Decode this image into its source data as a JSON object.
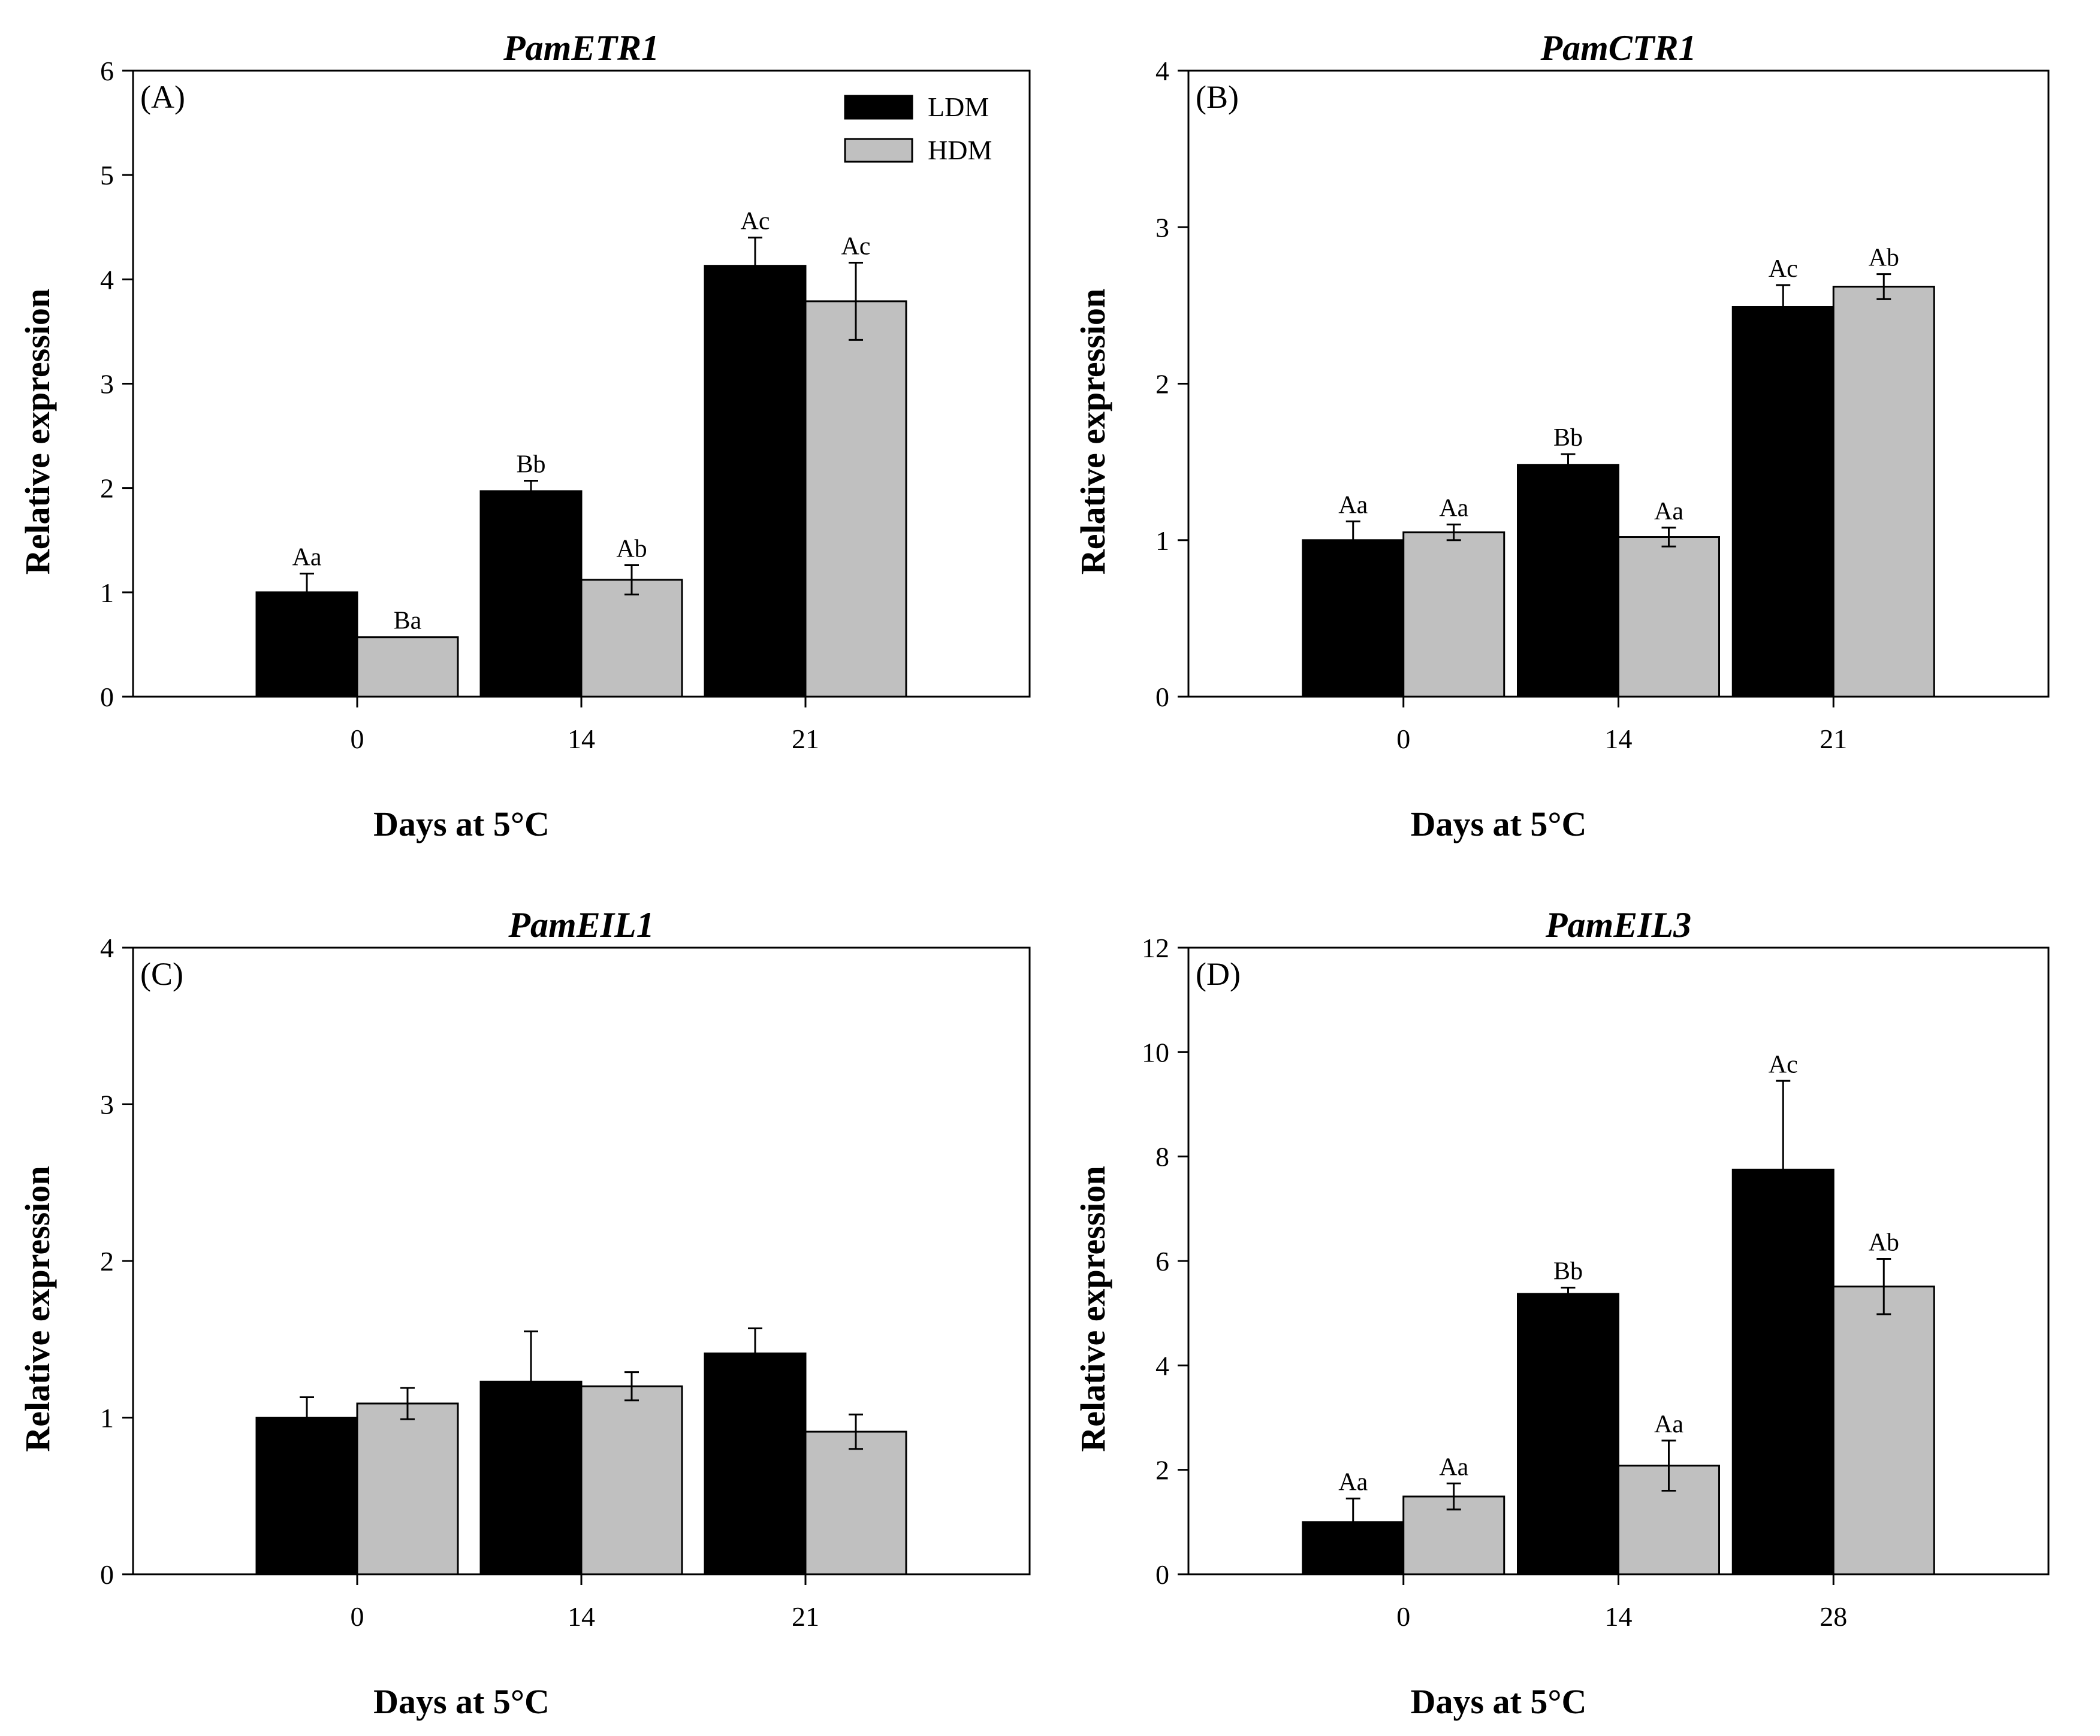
{
  "legend": {
    "items": [
      {
        "label": "LDM",
        "color": "#000000"
      },
      {
        "label": "HDM",
        "color": "#c0c0c0"
      }
    ]
  },
  "chart_data": [
    {
      "type": "bar",
      "panel_label": "(A)",
      "title": "PamETR1",
      "xlabel": "Days at 5°C",
      "ylabel": "Relative expression",
      "ylim": [
        0,
        6
      ],
      "yticks": [
        0,
        1,
        2,
        3,
        4,
        5,
        6
      ],
      "categories": [
        "0",
        "14",
        "21"
      ],
      "series": [
        {
          "name": "LDM",
          "values": [
            1.0,
            1.97,
            4.13
          ],
          "errors": [
            0.18,
            0.1,
            0.27
          ],
          "labels": [
            "Aa",
            "Bb",
            "Ac"
          ]
        },
        {
          "name": "HDM",
          "values": [
            0.57,
            1.12,
            3.79
          ],
          "errors": [
            0.0,
            0.14,
            0.37
          ],
          "labels": [
            "Ba",
            "Ab",
            "Ac"
          ]
        }
      ]
    },
    {
      "type": "bar",
      "panel_label": "(B)",
      "title": "PamCTR1",
      "xlabel": "Days at 5°C",
      "ylabel": "Relative expression",
      "ylim": [
        0,
        4
      ],
      "yticks": [
        0,
        1,
        2,
        3,
        4
      ],
      "categories": [
        "0",
        "14",
        "21"
      ],
      "series": [
        {
          "name": "LDM",
          "values": [
            1.0,
            1.48,
            2.49
          ],
          "errors": [
            0.12,
            0.07,
            0.14
          ],
          "labels": [
            "Aa",
            "Bb",
            "Ac"
          ]
        },
        {
          "name": "HDM",
          "values": [
            1.05,
            1.02,
            2.62
          ],
          "errors": [
            0.05,
            0.06,
            0.08
          ],
          "labels": [
            "Aa",
            "Aa",
            "Ab"
          ]
        }
      ]
    },
    {
      "type": "bar",
      "panel_label": "(C)",
      "title": "PamEIL1",
      "xlabel": "Days at 5°C",
      "ylabel": "Relative expression",
      "ylim": [
        0,
        4
      ],
      "yticks": [
        0,
        1,
        2,
        3,
        4
      ],
      "categories": [
        "0",
        "14",
        "21"
      ],
      "series": [
        {
          "name": "LDM",
          "values": [
            1.0,
            1.23,
            1.41
          ],
          "errors": [
            0.13,
            0.32,
            0.16
          ],
          "labels": [
            "",
            "",
            ""
          ]
        },
        {
          "name": "HDM",
          "values": [
            1.09,
            1.2,
            0.91
          ],
          "errors": [
            0.1,
            0.09,
            0.11
          ],
          "labels": [
            "",
            "",
            ""
          ]
        }
      ]
    },
    {
      "type": "bar",
      "panel_label": "(D)",
      "title": "PamEIL3",
      "xlabel": "Days at 5°C",
      "ylabel": "Relative expression",
      "ylim": [
        0,
        12
      ],
      "yticks": [
        0,
        2,
        4,
        6,
        8,
        10,
        12
      ],
      "categories": [
        "0",
        "14",
        "28"
      ],
      "series": [
        {
          "name": "LDM",
          "values": [
            1.0,
            5.37,
            7.75
          ],
          "errors": [
            0.45,
            0.12,
            1.7
          ],
          "labels": [
            "Aa",
            "Bb",
            "Ac"
          ]
        },
        {
          "name": "HDM",
          "values": [
            1.49,
            2.08,
            5.51
          ],
          "errors": [
            0.25,
            0.48,
            0.53
          ],
          "labels": [
            "Aa",
            "Aa",
            "Ab"
          ]
        }
      ]
    }
  ]
}
